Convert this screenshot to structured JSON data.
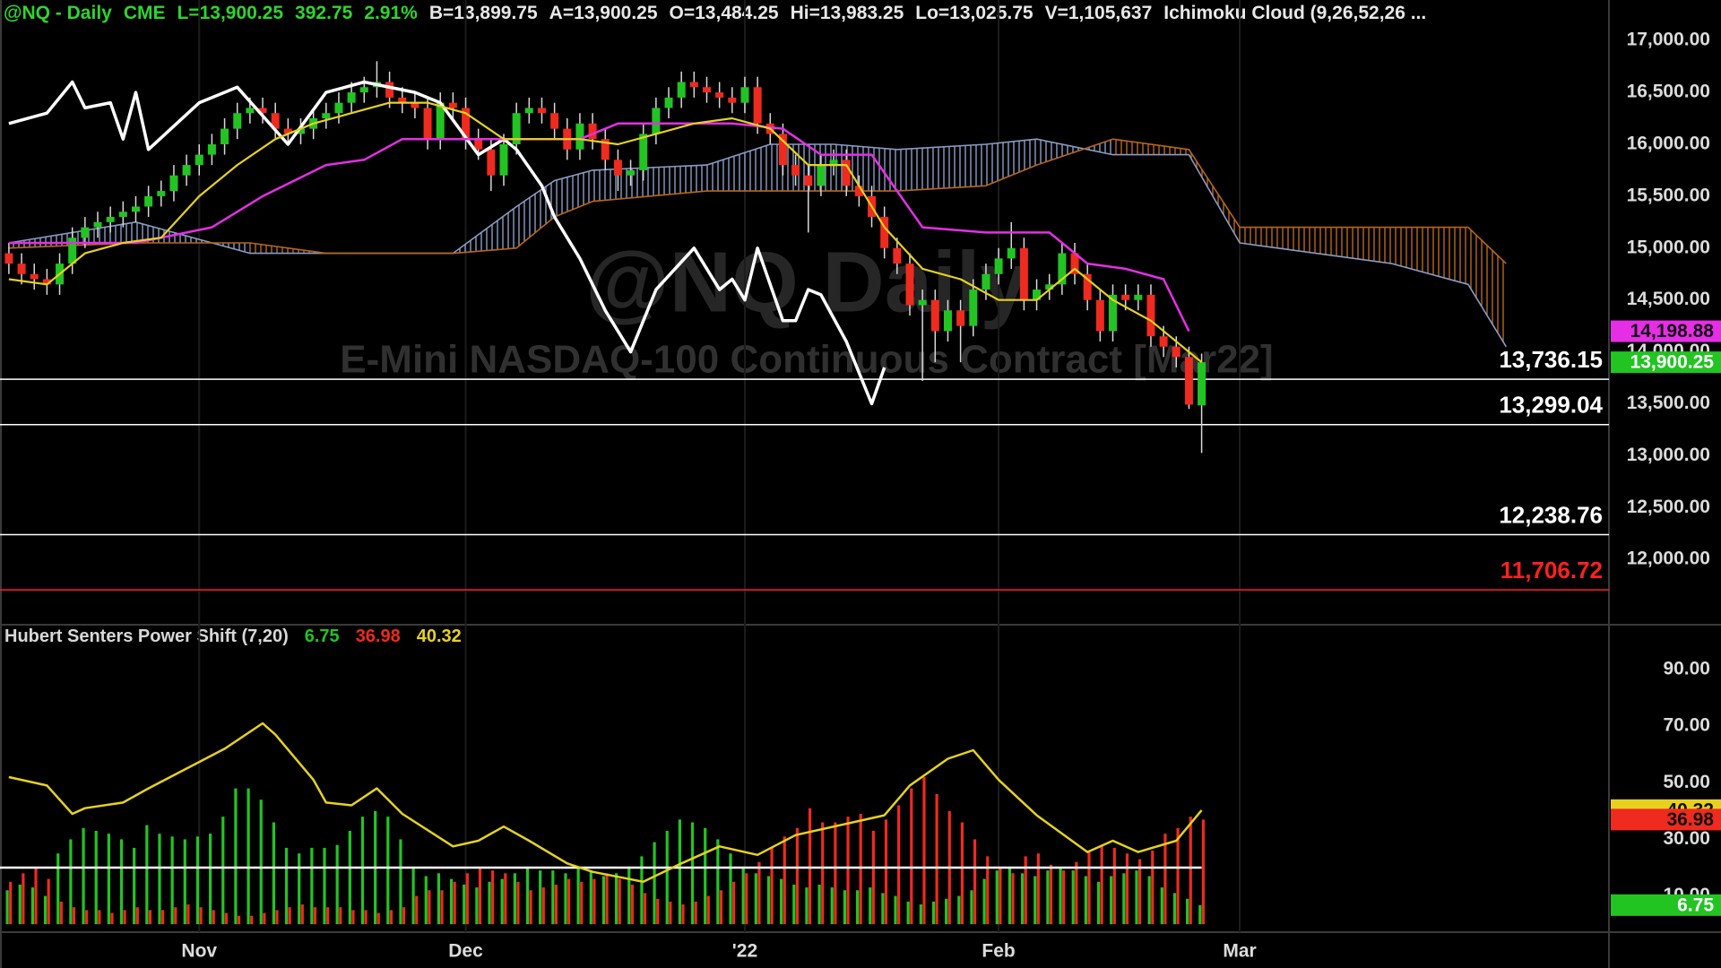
{
  "chart_data": [
    {
      "type": "candlestick",
      "header": [
        {
          "text": "@NQ - Daily",
          "color": "#2ed52e"
        },
        {
          "text": "CME",
          "color": "#2ed52e"
        },
        {
          "text": "L=13,900.25",
          "color": "#2ed52e"
        },
        {
          "text": "392.75",
          "color": "#2ed52e"
        },
        {
          "text": "2.91%",
          "color": "#2ed52e"
        },
        {
          "text": "B=13,899.75",
          "color": "#e8e8e8"
        },
        {
          "text": "A=13,900.25",
          "color": "#e8e8e8"
        },
        {
          "text": "O=13,484.25",
          "color": "#e8e8e8"
        },
        {
          "text": "Hi=13,983.25",
          "color": "#e8e8e8"
        },
        {
          "text": "Lo=13,025.75",
          "color": "#e8e8e8"
        },
        {
          "text": "V=1,105,637",
          "color": "#e8e8e8"
        },
        {
          "text": "Ichimoku Cloud (9,26,52,26 ...",
          "color": "#e8e8e8"
        }
      ],
      "watermark": "@NQ Daily",
      "subtitle": "E-Mini NASDAQ-100 Continuous Contract [Mar22]",
      "xlim": [
        -0.7,
        126.1
      ],
      "ylim": [
        11380,
        17390
      ],
      "yticks": [
        {
          "value": 12000,
          "label": "12,000.00"
        },
        {
          "value": 12500,
          "label": "12,500.00"
        },
        {
          "value": 13000,
          "label": "13,000.00"
        },
        {
          "value": 13500,
          "label": "13,500.00"
        },
        {
          "value": 14000,
          "label": "14,000.00"
        },
        {
          "value": 14500,
          "label": "14,500.00"
        },
        {
          "value": 15000,
          "label": "15,000.00"
        },
        {
          "value": 15500,
          "label": "15,500.00"
        },
        {
          "value": 16000,
          "label": "16,000.00"
        },
        {
          "value": 16500,
          "label": "16,500.00"
        },
        {
          "value": 17000,
          "label": "17,000.00"
        }
      ],
      "up_color": "#22c422",
      "down_color": "#ef2a1e",
      "wick_color": "#d8d8d8",
      "open": [
        14950,
        14850,
        14750,
        14700,
        14650,
        14850,
        15100,
        15200,
        15250,
        15300,
        15350,
        15400,
        15500,
        15550,
        15700,
        15800,
        15900,
        16000,
        16150,
        16300,
        16350,
        16300,
        16150,
        16100,
        16150,
        16250,
        16300,
        16400,
        16500,
        16550,
        16600,
        16450,
        16400,
        16350,
        16050,
        16400,
        16350,
        16050,
        15950,
        15700,
        16000,
        16300,
        16350,
        16300,
        16150,
        15950,
        16200,
        16050,
        15850,
        15700,
        15750,
        16100,
        16350,
        16450,
        16600,
        16550,
        16500,
        16450,
        16400,
        16550,
        16200,
        16100,
        15800,
        15700,
        15600,
        15800,
        15850,
        15600,
        15500,
        15300,
        15000,
        14850,
        14450,
        14500,
        14200,
        14400,
        14250,
        14600,
        14750,
        14900,
        15000,
        14500,
        14600,
        14650,
        14950,
        14750,
        14500,
        14200,
        14550,
        14500,
        14550,
        14150,
        14050,
        13950,
        13484.25
      ],
      "high": [
        15050,
        14950,
        14850,
        14800,
        14950,
        15200,
        15300,
        15350,
        15400,
        15450,
        15500,
        15600,
        15650,
        15800,
        15900,
        16000,
        16100,
        16250,
        16400,
        16450,
        16450,
        16400,
        16250,
        16250,
        16350,
        16400,
        16500,
        16600,
        16650,
        16800,
        16700,
        16550,
        16500,
        16450,
        16500,
        16500,
        16450,
        16150,
        16050,
        16100,
        16400,
        16450,
        16450,
        16400,
        16250,
        16300,
        16300,
        16150,
        15950,
        15850,
        16200,
        16450,
        16550,
        16700,
        16700,
        16650,
        16600,
        16550,
        16650,
        16650,
        16300,
        16200,
        15900,
        15800,
        15900,
        15950,
        15950,
        15700,
        15600,
        15400,
        15100,
        14950,
        14600,
        14600,
        14500,
        14500,
        14700,
        14850,
        15000,
        15250,
        15100,
        14700,
        14750,
        15050,
        15050,
        14850,
        14600,
        14650,
        14650,
        14650,
        14650,
        14250,
        14150,
        14050,
        13983.25
      ],
      "low": [
        14750,
        14650,
        14600,
        14550,
        14550,
        14750,
        15000,
        15100,
        15150,
        15200,
        15250,
        15300,
        15400,
        15450,
        15600,
        15700,
        15800,
        15900,
        16050,
        16200,
        16200,
        16050,
        16000,
        16000,
        16050,
        16150,
        16200,
        16300,
        16400,
        16450,
        16350,
        16300,
        16250,
        15950,
        15950,
        16250,
        15950,
        15850,
        15550,
        15600,
        15900,
        16200,
        16200,
        16050,
        15850,
        15850,
        15950,
        15750,
        15550,
        15600,
        15650,
        16000,
        16250,
        16350,
        16450,
        16400,
        16350,
        16300,
        16300,
        16100,
        16000,
        15700,
        15600,
        15150,
        15500,
        15700,
        15500,
        15400,
        15200,
        14900,
        14750,
        14350,
        13720,
        13900,
        14100,
        13900,
        14150,
        14500,
        14650,
        14800,
        14400,
        14400,
        14500,
        14550,
        14650,
        14400,
        14100,
        14100,
        14400,
        14400,
        14050,
        13950,
        13850,
        13450,
        13025.75
      ],
      "close": [
        14850,
        14750,
        14700,
        14650,
        14850,
        15100,
        15200,
        15250,
        15300,
        15350,
        15400,
        15500,
        15550,
        15700,
        15800,
        15900,
        16000,
        16150,
        16300,
        16350,
        16300,
        16150,
        16100,
        16150,
        16250,
        16300,
        16400,
        16500,
        16550,
        16600,
        16450,
        16400,
        16350,
        16050,
        16400,
        16350,
        16050,
        15950,
        15700,
        16000,
        16300,
        16350,
        16300,
        16150,
        15950,
        16200,
        16050,
        15850,
        15700,
        15750,
        16100,
        16350,
        16450,
        16600,
        16550,
        16500,
        16450,
        16400,
        16550,
        16200,
        16100,
        15800,
        15700,
        15600,
        15800,
        15850,
        15600,
        15500,
        15300,
        15000,
        14850,
        14450,
        14500,
        14200,
        14400,
        14250,
        14600,
        14750,
        14900,
        15000,
        14500,
        14600,
        14650,
        14950,
        14750,
        14500,
        14200,
        14550,
        14500,
        14550,
        14150,
        14050,
        13950,
        13491.75,
        13900.25
      ],
      "cloud": {
        "x": [
          0,
          10,
          19,
          25,
          35,
          40,
          43,
          46,
          55,
          60,
          65,
          70,
          77,
          81,
          87,
          93,
          97,
          103,
          109,
          115,
          118
        ],
        "span_a": [
          15050,
          15250,
          14950,
          14950,
          14950,
          15400,
          15650,
          15750,
          15800,
          16000,
          16000,
          15950,
          16000,
          16050,
          15900,
          15900,
          15050,
          14950,
          14850,
          14650,
          14050
        ],
        "span_b": [
          15000,
          15050,
          15050,
          14950,
          14950,
          15000,
          15300,
          15450,
          15550,
          15550,
          15550,
          15550,
          15600,
          15800,
          16050,
          15950,
          15200,
          15200,
          15200,
          15200,
          14850
        ],
        "up_color": "#8a9cc4",
        "down_color": "#b8661e"
      },
      "lines": [
        {
          "color": "#ffffff",
          "width": 3.5,
          "x": [
            0,
            3,
            5,
            6,
            8,
            9,
            10,
            11,
            15,
            18,
            22,
            25,
            28,
            32,
            34,
            37,
            39,
            40,
            42,
            43,
            45,
            47,
            49,
            51,
            54,
            56,
            57,
            58,
            59,
            61,
            62,
            63,
            64,
            66,
            68,
            69
          ],
          "values": [
            16200,
            16300,
            16600,
            16350,
            16400,
            16050,
            16500,
            15950,
            16400,
            16550,
            16000,
            16500,
            16600,
            16500,
            16400,
            15900,
            16050,
            15950,
            15600,
            15300,
            14900,
            14400,
            14000,
            14600,
            15000,
            14600,
            14700,
            14500,
            15000,
            14300,
            14300,
            14600,
            14550,
            14100,
            13500,
            13850
          ]
        },
        {
          "color": "#e62ee6",
          "width": 2.5,
          "x": [
            0,
            10,
            16,
            20,
            25,
            28,
            31,
            35,
            45,
            48,
            57,
            61,
            64,
            68,
            72,
            77,
            82,
            85,
            88,
            91,
            93
          ],
          "values": [
            15050,
            15050,
            15200,
            15500,
            15800,
            15850,
            16050,
            16050,
            16050,
            16200,
            16200,
            16150,
            15900,
            15900,
            15200,
            15150,
            15150,
            14850,
            14800,
            14700,
            14198.88
          ]
        },
        {
          "color": "#e6d21e",
          "width": 2.2,
          "x": [
            0,
            3,
            6,
            9,
            12,
            15,
            18,
            21,
            24,
            27,
            30,
            33,
            36,
            39,
            42,
            45,
            48,
            51,
            54,
            57,
            60,
            63,
            66,
            69,
            72,
            75,
            78,
            81,
            84,
            87,
            90,
            93,
            94
          ],
          "values": [
            14700,
            14650,
            14950,
            15050,
            15100,
            15500,
            15800,
            16050,
            16200,
            16300,
            16400,
            16400,
            16300,
            16050,
            16050,
            16050,
            16000,
            16100,
            16200,
            16250,
            16150,
            15800,
            15800,
            15200,
            14800,
            14700,
            14500,
            14500,
            14800,
            14500,
            14300,
            14000,
            13900
          ]
        }
      ],
      "levels": [
        {
          "value": 13736.15,
          "label": "13,736.15",
          "color": "#ffffff"
        },
        {
          "value": 13299.04,
          "label": "13,299.04",
          "color": "#ffffff"
        },
        {
          "value": 12238.76,
          "label": "12,238.76",
          "color": "#ffffff"
        },
        {
          "value": 11706.72,
          "label": "11,706.72",
          "color": "#ff2020"
        }
      ],
      "badges": [
        {
          "value": 14198.88,
          "label": "14,198.88",
          "color": "#e62ee6",
          "text_color": "#111111"
        },
        {
          "value": 13900.25,
          "label": "13,900.25",
          "color": "#22c422",
          "text_color": "#ffffff"
        }
      ]
    },
    {
      "type": "bar",
      "title": "Hubert Senters Power Shift (7,20)",
      "xlim": [
        -0.7,
        126.1
      ],
      "ylim": [
        -2.8,
        105.2
      ],
      "yticks": [
        {
          "value": 10,
          "label": "10.00"
        },
        {
          "value": 30,
          "label": "30.00"
        },
        {
          "value": 50,
          "label": "50.00"
        },
        {
          "value": 70,
          "label": "70.00"
        },
        {
          "value": 90,
          "label": "90.00"
        }
      ],
      "xticks": [
        {
          "value": 15,
          "label": "Nov"
        },
        {
          "value": 36,
          "label": "Dec"
        },
        {
          "value": 58,
          "label": "'22"
        },
        {
          "value": 78,
          "label": "Feb"
        },
        {
          "value": 97,
          "label": "Mar"
        }
      ],
      "series": [
        {
          "color": "#22c422",
          "values": [
            12,
            14,
            13,
            10,
            25,
            30,
            34,
            33,
            32,
            30,
            27,
            35,
            32,
            31,
            30,
            31,
            32,
            38,
            48,
            48,
            44,
            36,
            27,
            25,
            27,
            27,
            28,
            33,
            38,
            40,
            38,
            30,
            20,
            17,
            18,
            16,
            14,
            13,
            15,
            16,
            18,
            20,
            19,
            19,
            18,
            20,
            19,
            17,
            18,
            20,
            24,
            29,
            33,
            37,
            36,
            34,
            30,
            25,
            20,
            18,
            17,
            16,
            14,
            13,
            14,
            13,
            12,
            12,
            13,
            11,
            10,
            8,
            7,
            8,
            9,
            10,
            12,
            16,
            19,
            20,
            18,
            17,
            19,
            20,
            19,
            17,
            15,
            17,
            18,
            19,
            17,
            13,
            11,
            9,
            6.75
          ]
        },
        {
          "color": "#ef2a1e",
          "values": [
            15,
            18,
            20,
            16,
            8,
            6,
            5,
            5,
            4,
            5,
            6,
            5,
            5,
            6,
            7,
            6,
            5,
            4,
            3,
            3,
            4,
            5,
            6,
            7,
            6,
            6,
            6,
            5,
            5,
            4,
            5,
            6,
            10,
            12,
            12,
            15,
            18,
            20,
            19,
            18,
            15,
            12,
            13,
            14,
            16,
            15,
            16,
            18,
            16,
            14,
            11,
            9,
            8,
            7,
            8,
            10,
            12,
            15,
            18,
            22,
            27,
            31,
            34,
            41,
            36,
            36,
            38,
            39,
            33,
            37,
            42,
            48,
            52,
            46,
            40,
            36,
            30,
            24,
            20,
            18,
            24,
            25,
            21,
            19,
            22,
            26,
            28,
            27,
            25,
            23,
            26,
            32,
            34,
            38,
            36.98
          ]
        }
      ],
      "line": {
        "color": "#e6d21e",
        "x": [
          0,
          3,
          5,
          6,
          9,
          11,
          17,
          20,
          21,
          24,
          25,
          27,
          29,
          31,
          35,
          37,
          39,
          41,
          44,
          46,
          50,
          53,
          56,
          59,
          62,
          69,
          71,
          74,
          76,
          78,
          81,
          85,
          87,
          89,
          92,
          94
        ],
        "values": [
          52,
          49,
          39,
          41,
          43,
          48,
          62,
          71,
          67,
          51,
          43,
          42,
          48,
          39,
          27.5,
          29.5,
          34.5,
          29.5,
          21.5,
          18.5,
          15,
          21.5,
          27.5,
          24.5,
          31.5,
          38.5,
          49,
          58.5,
          61.5,
          51,
          38.5,
          25.5,
          29.5,
          25.5,
          29.5,
          40.32
        ]
      },
      "hline": 20,
      "badges": [
        {
          "value": 40.32,
          "label": "40.32",
          "color": "#e6d21e",
          "text_color": "#111111"
        },
        {
          "value": 36.98,
          "label": "36.98",
          "color": "#ef2a1e",
          "text_color": "#111111"
        },
        {
          "value": 6.75,
          "label": "6.75",
          "color": "#22c422",
          "text_color": "#ffffff"
        }
      ]
    }
  ]
}
